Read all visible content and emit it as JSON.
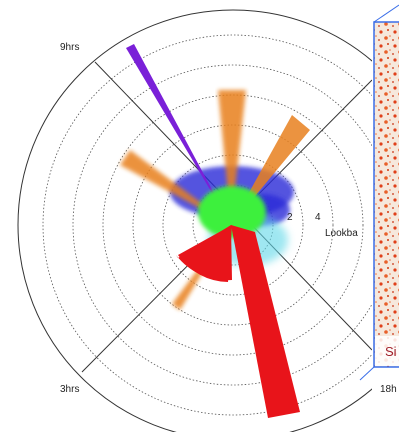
{
  "labels": {
    "nine_hrs": "9hrs",
    "three_hrs": "3hrs",
    "eighteen_hrs": "18h",
    "tick_2": 2,
    "tick_4": 4,
    "axis_label": "Lookba"
  },
  "inset": {
    "caption": "Si"
  }
}
